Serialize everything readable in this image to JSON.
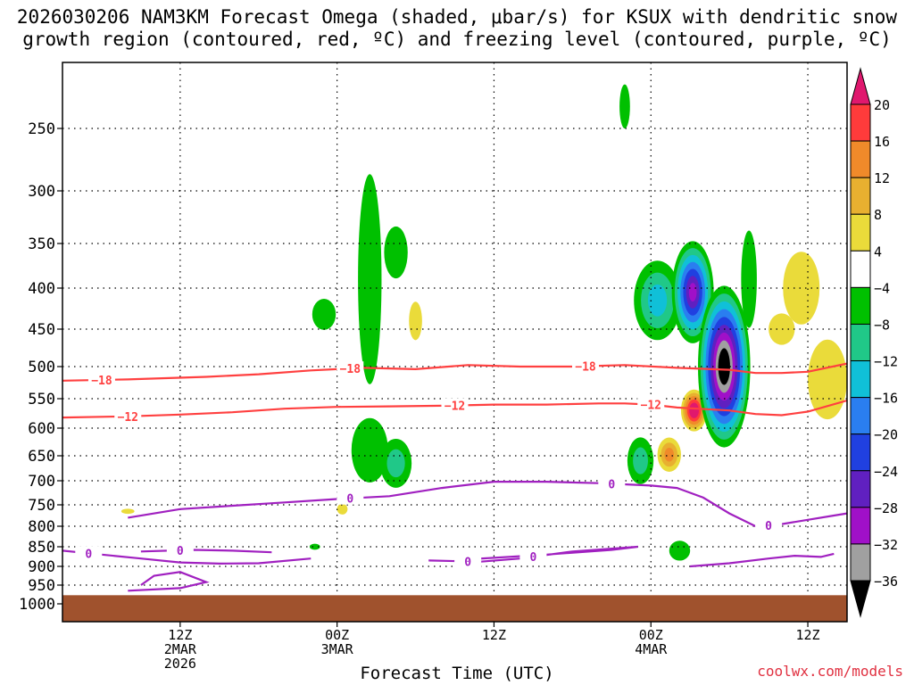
{
  "title": {
    "line1": "2026030206 NAM3KM Forecast Omega (shaded, μbar/s) for KSUX with dendritic snow",
    "line2": "growth region (contoured, red, ºC) and freezing level (contoured, purple, ºC)"
  },
  "credit": "coolwx.com/models",
  "chart_data": {
    "type": "heatmap",
    "xlabel": "Forecast Time (UTC)",
    "ylabel": "",
    "x_unit": "hours from 2026-03-02 00Z",
    "xlim": [
      3,
      63
    ],
    "ylim": [
      1020,
      205
    ],
    "y_ticks": [
      250,
      300,
      350,
      400,
      450,
      500,
      550,
      600,
      650,
      700,
      750,
      800,
      850,
      900,
      950,
      1000
    ],
    "y_tick_labels": [
      "250",
      "300",
      "350",
      "400",
      "450",
      "500",
      "550",
      "600",
      "650",
      "700",
      "750",
      "800",
      "850",
      "900",
      "950",
      "1000"
    ],
    "x_ticks": [
      {
        "x": 12,
        "line1": "12Z",
        "line2": "2MAR",
        "line3": "2026"
      },
      {
        "x": 24,
        "line1": "00Z",
        "line2": "3MAR",
        "line3": ""
      },
      {
        "x": 36,
        "line1": "12Z",
        "line2": "",
        "line3": ""
      },
      {
        "x": 48,
        "line1": "00Z",
        "line2": "4MAR",
        "line3": ""
      },
      {
        "x": 60,
        "line1": "12Z",
        "line2": "",
        "line3": ""
      }
    ],
    "ground_pressure": 977,
    "colors": {
      "ground": "#a0522d",
      "grid": "#000000",
      "dgz": "#ff4040",
      "freezing": "#a020c0"
    },
    "colorbar": {
      "levels": [
        20,
        16,
        12,
        8,
        4,
        -4,
        -8,
        -12,
        -16,
        -20,
        -24,
        -28,
        -32,
        -36
      ],
      "labels": [
        "20",
        "16",
        "12",
        "8",
        "4",
        "−4",
        "−8",
        "−12",
        "−16",
        "−20",
        "−24",
        "−28",
        "−32",
        "−36"
      ],
      "bands": [
        {
          "color": "#e0186e",
          "role": "above 20"
        },
        {
          "color": "#ff3b3b",
          "range": [
            16,
            20
          ]
        },
        {
          "color": "#f08a2a",
          "range": [
            12,
            16
          ]
        },
        {
          "color": "#e8b030",
          "range": [
            8,
            12
          ]
        },
        {
          "color": "#eadb3a",
          "range": [
            4,
            8
          ]
        },
        {
          "color": "#ffffff",
          "range": [
            -4,
            4
          ]
        },
        {
          "color": "#00c000",
          "range": [
            -8,
            -4
          ]
        },
        {
          "color": "#20c888",
          "range": [
            -12,
            -8
          ]
        },
        {
          "color": "#10c0d8",
          "range": [
            -16,
            -12
          ]
        },
        {
          "color": "#2a7ef0",
          "range": [
            -20,
            -16
          ]
        },
        {
          "color": "#2040e0",
          "range": [
            -24,
            -20
          ]
        },
        {
          "color": "#6020c0",
          "range": [
            -28,
            -24
          ]
        },
        {
          "color": "#a010c8",
          "range": [
            -32,
            -28
          ]
        },
        {
          "color": "#a0a0a0",
          "range": [
            -36,
            -32
          ]
        },
        {
          "color": "#000000",
          "role": "below -36"
        }
      ]
    },
    "dgz_contours": [
      {
        "value": -18,
        "label": "−18",
        "points": [
          [
            3,
            522
          ],
          [
            8,
            520
          ],
          [
            14,
            516
          ],
          [
            18,
            512
          ],
          [
            22,
            506
          ],
          [
            26,
            502
          ],
          [
            30,
            504
          ],
          [
            34,
            498
          ],
          [
            38,
            500
          ],
          [
            42,
            500
          ],
          [
            46,
            498
          ],
          [
            50,
            502
          ],
          [
            54,
            505
          ],
          [
            56,
            510
          ],
          [
            58,
            510
          ],
          [
            60,
            508
          ],
          [
            63,
            496
          ]
        ],
        "label_x": [
          6,
          25,
          43
        ]
      },
      {
        "value": -12,
        "label": "−12",
        "points": [
          [
            3,
            582
          ],
          [
            8,
            580
          ],
          [
            12,
            577
          ],
          [
            16,
            573
          ],
          [
            20,
            567
          ],
          [
            24,
            564
          ],
          [
            28,
            563
          ],
          [
            32,
            562
          ],
          [
            36,
            560
          ],
          [
            40,
            560
          ],
          [
            44,
            558
          ],
          [
            46,
            558
          ],
          [
            48,
            560
          ],
          [
            50,
            565
          ],
          [
            54,
            570
          ],
          [
            56,
            576
          ],
          [
            58,
            578
          ],
          [
            60,
            572
          ],
          [
            63,
            553
          ]
        ],
        "label_x": [
          8,
          33,
          48
        ]
      }
    ],
    "freezing_contours": [
      {
        "value": 0,
        "label": "0",
        "points": [
          [
            8,
            780
          ],
          [
            12,
            760
          ],
          [
            16,
            752
          ],
          [
            20,
            745
          ],
          [
            24,
            738
          ],
          [
            28,
            732
          ],
          [
            32,
            715
          ],
          [
            36,
            702
          ],
          [
            40,
            702
          ],
          [
            44,
            705
          ],
          [
            48,
            710
          ],
          [
            50,
            715
          ],
          [
            52,
            735
          ],
          [
            54,
            770
          ],
          [
            56,
            800
          ],
          [
            58,
            795
          ],
          [
            60,
            785
          ],
          [
            62,
            775
          ],
          [
            63,
            770
          ]
        ],
        "label_x": [
          25,
          45,
          57
        ]
      },
      {
        "value": 0,
        "label": "0",
        "points": [
          [
            3,
            860
          ],
          [
            6,
            870
          ],
          [
            9,
            880
          ],
          [
            12,
            890
          ],
          [
            15,
            893
          ],
          [
            18,
            892
          ],
          [
            22,
            880
          ]
        ],
        "label_x": [
          5
        ]
      },
      {
        "value": 0,
        "label": "0",
        "points": [
          [
            9,
            862
          ],
          [
            13,
            858
          ],
          [
            16,
            860
          ],
          [
            19,
            864
          ]
        ],
        "label_x": [
          12
        ]
      },
      {
        "value": 0,
        "label": "0",
        "points": [
          [
            31,
            885
          ],
          [
            35,
            888
          ],
          [
            38,
            880
          ],
          [
            42,
            862
          ],
          [
            47,
            850
          ],
          [
            45,
            858
          ],
          [
            40,
            870
          ],
          [
            34,
            882
          ]
        ],
        "label_x": [
          34,
          39
        ]
      },
      {
        "value": 0,
        "label": "",
        "points": [
          [
            8,
            965
          ],
          [
            12,
            958
          ],
          [
            14,
            942
          ],
          [
            12,
            915
          ],
          [
            10,
            925
          ],
          [
            9,
            950
          ]
        ],
        "label_x": []
      },
      {
        "value": 0,
        "label": "",
        "points": [
          [
            51,
            900
          ],
          [
            54,
            892
          ],
          [
            57,
            880
          ],
          [
            59,
            873
          ],
          [
            61,
            876
          ],
          [
            62,
            868
          ]
        ],
        "label_x": []
      }
    ],
    "omega_blobs": [
      {
        "x": 26.5,
        "p": 390,
        "w": 0.9,
        "h": 230,
        "value": -6
      },
      {
        "x": 28.5,
        "p": 360,
        "w": 0.9,
        "h": 55,
        "value": -6
      },
      {
        "x": 23.0,
        "p": 432,
        "w": 0.9,
        "h": 38,
        "value": -6
      },
      {
        "x": 26.5,
        "p": 640,
        "w": 1.4,
        "h": 120,
        "value": -6
      },
      {
        "x": 28.5,
        "p": 665,
        "w": 1.2,
        "h": 95,
        "value": -10
      },
      {
        "x": 30.0,
        "p": 440,
        "w": 0.5,
        "h": 48,
        "value": 6
      },
      {
        "x": 24.4,
        "p": 760,
        "w": 0.4,
        "h": 25,
        "value": 6
      },
      {
        "x": 22.3,
        "p": 850,
        "w": 0.4,
        "h": 15,
        "value": -6
      },
      {
        "x": 48.5,
        "p": 415,
        "w": 1.8,
        "h": 95,
        "value": -14
      },
      {
        "x": 47.2,
        "p": 660,
        "w": 1.0,
        "h": 90,
        "value": -10
      },
      {
        "x": 49.4,
        "p": 648,
        "w": 0.9,
        "h": 65,
        "value": 14
      },
      {
        "x": 51.2,
        "p": 405,
        "w": 1.6,
        "h": 120,
        "value": -28
      },
      {
        "x": 51.3,
        "p": 570,
        "w": 1.0,
        "h": 70,
        "value": 24
      },
      {
        "x": 53.6,
        "p": 500,
        "w": 2.0,
        "h": 230,
        "value": -40
      },
      {
        "x": 55.5,
        "p": 390,
        "w": 0.6,
        "h": 110,
        "value": -6
      },
      {
        "x": 59.5,
        "p": 400,
        "w": 1.4,
        "h": 85,
        "value": 6
      },
      {
        "x": 61.5,
        "p": 520,
        "w": 1.5,
        "h": 120,
        "value": 6
      },
      {
        "x": 58.0,
        "p": 450,
        "w": 1.0,
        "h": 40,
        "value": 6
      },
      {
        "x": 50.2,
        "p": 860,
        "w": 0.8,
        "h": 50,
        "value": -6
      },
      {
        "x": 46.0,
        "p": 235,
        "w": 0.4,
        "h": 30,
        "value": -6
      },
      {
        "x": 8.0,
        "p": 765,
        "w": 0.5,
        "h": 12,
        "value": 6
      }
    ]
  }
}
